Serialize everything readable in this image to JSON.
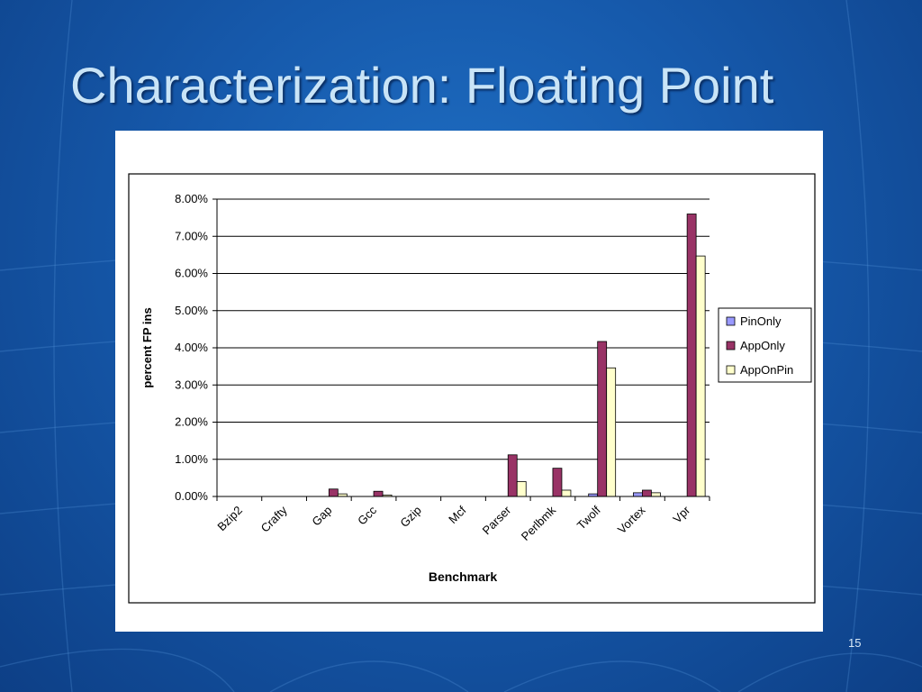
{
  "slide": {
    "title": "Characterization: Floating Point",
    "page_number": "15"
  },
  "colors": {
    "background": "#1659ab",
    "title": "#c9e4f7",
    "pinonly": "#9999ff",
    "apponly": "#993366",
    "apponpin": "#ffffcc"
  },
  "chart_data": {
    "type": "bar",
    "title": "",
    "xlabel": "Benchmark",
    "ylabel": "percent FP ins",
    "ylim": [
      0,
      8
    ],
    "ytick_step": 1,
    "ytick_labels": [
      "0.00%",
      "1.00%",
      "2.00%",
      "3.00%",
      "4.00%",
      "5.00%",
      "6.00%",
      "7.00%",
      "8.00%"
    ],
    "grid": true,
    "legend_position": "right",
    "categories": [
      "Bzip2",
      "Crafty",
      "Gap",
      "Gcc",
      "Gzip",
      "Mcf",
      "Parser",
      "Perlbmk",
      "Twolf",
      "Vortex",
      "Vpr"
    ],
    "series": [
      {
        "name": "PinOnly",
        "color": "#9999ff",
        "values": [
          0,
          0,
          0,
          0,
          0,
          0,
          0,
          0,
          0.07,
          0.1,
          0
        ]
      },
      {
        "name": "AppOnly",
        "color": "#993366",
        "values": [
          0,
          0,
          0.2,
          0.14,
          0,
          0,
          1.12,
          0.76,
          4.17,
          0.17,
          7.6
        ]
      },
      {
        "name": "AppOnPin",
        "color": "#ffffcc",
        "values": [
          0,
          0,
          0.07,
          0.04,
          0,
          0,
          0.4,
          0.17,
          3.46,
          0.1,
          6.47
        ]
      }
    ]
  }
}
